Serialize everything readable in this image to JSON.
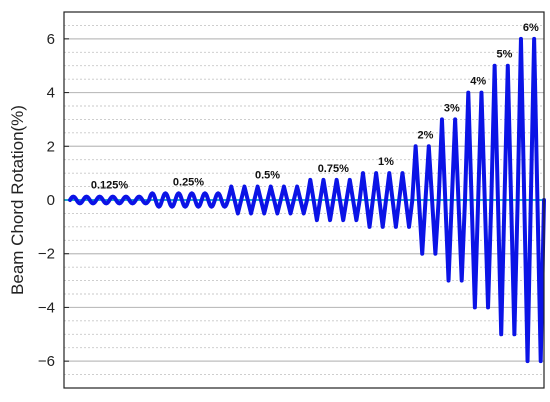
{
  "chart_data": {
    "type": "line",
    "title": "",
    "xlabel": "",
    "ylabel": "Beam Chord Rotation(%)",
    "ylim": [
      -7,
      7
    ],
    "yticks": [
      {
        "value": 6,
        "label": "6"
      },
      {
        "value": 4,
        "label": "4"
      },
      {
        "value": 2,
        "label": "2"
      },
      {
        "value": 0,
        "label": "0"
      },
      {
        "value": -2,
        "label": "−2"
      },
      {
        "value": -4,
        "label": "−4"
      },
      {
        "value": -6,
        "label": "−6"
      }
    ],
    "grid": true,
    "line_color": "#0b13e6",
    "zero_line_color": "#00a0c8",
    "series": [
      {
        "stages": [
          {
            "amplitude": 0.125,
            "cycles": 6,
            "label": "0.125%"
          },
          {
            "amplitude": 0.25,
            "cycles": 6,
            "label": "0.25%"
          },
          {
            "amplitude": 0.5,
            "cycles": 6,
            "label": "0.5%"
          },
          {
            "amplitude": 0.75,
            "cycles": 4,
            "label": "0.75%"
          },
          {
            "amplitude": 1,
            "cycles": 4,
            "label": "1%"
          },
          {
            "amplitude": 2,
            "cycles": 2,
            "label": "2%"
          },
          {
            "amplitude": 3,
            "cycles": 2,
            "label": "3%"
          },
          {
            "amplitude": 4,
            "cycles": 2,
            "label": "4%"
          },
          {
            "amplitude": 5,
            "cycles": 2,
            "label": "5%"
          },
          {
            "amplitude": 6,
            "cycles": 2,
            "label": "6%"
          }
        ]
      }
    ]
  }
}
